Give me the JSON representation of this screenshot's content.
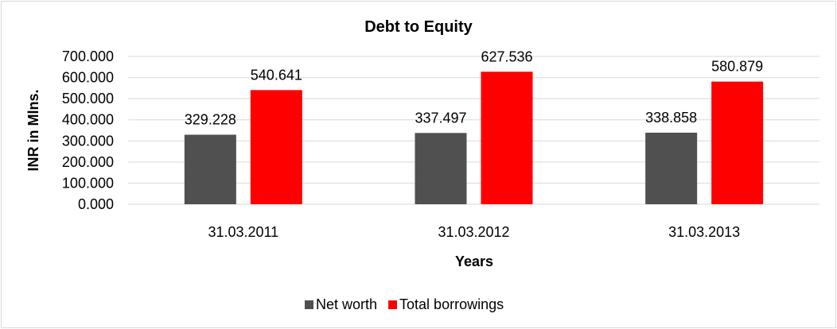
{
  "chart_data": {
    "type": "bar",
    "title": "Debt to Equity",
    "xlabel": "Years",
    "ylabel": "INR in Mlns.",
    "categories": [
      "31.03.2011",
      "31.03.2012",
      "31.03.2013"
    ],
    "series": [
      {
        "name": "Net worth",
        "color": "#505050",
        "values": [
          329.228,
          337.497,
          338.858
        ],
        "labels": [
          "329.228",
          "337.497",
          "338.858"
        ]
      },
      {
        "name": "Total borrowings",
        "color": "#ff0000",
        "values": [
          540.641,
          627.536,
          580.879
        ],
        "labels": [
          "540.641",
          "627.536",
          "580.879"
        ]
      }
    ],
    "ylim": [
      0,
      700
    ],
    "yticks": [
      "0.000",
      "100.000",
      "200.000",
      "300.000",
      "400.000",
      "500.000",
      "600.000",
      "700.000"
    ],
    "grid": true,
    "legend": "bottom"
  }
}
